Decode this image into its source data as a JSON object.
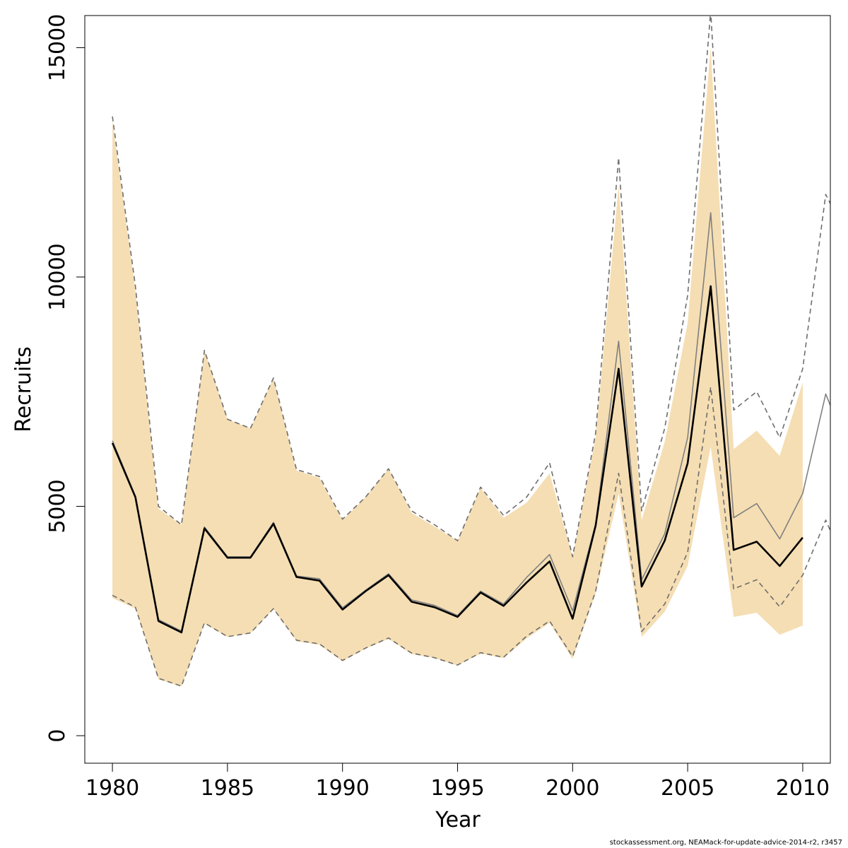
{
  "chart_data": {
    "type": "line",
    "xlabel": "Year",
    "ylabel": "Recruits",
    "xlim": [
      1978.8,
      2011.2
    ],
    "ylim": [
      -600,
      15700
    ],
    "x_ticks": [
      1980,
      1985,
      1990,
      1995,
      2000,
      2005,
      2010
    ],
    "y_ticks": [
      0,
      5000,
      10000,
      15000
    ],
    "grid": false,
    "band_color": "#f5deb3",
    "x": [
      1980,
      1981,
      1982,
      1983,
      1984,
      1985,
      1986,
      1987,
      1988,
      1989,
      1990,
      1991,
      1992,
      1993,
      1994,
      1995,
      1996,
      1997,
      1998,
      1999,
      2000,
      2001,
      2002,
      2003,
      2004,
      2005,
      2006,
      2007,
      2008,
      2009,
      2010
    ],
    "series": [
      {
        "style": "thick black line",
        "color": "#000000",
        "values": [
          6380,
          5200,
          2500,
          2250,
          4520,
          3880,
          3880,
          4620,
          3460,
          3380,
          2750,
          3150,
          3500,
          2920,
          2800,
          2590,
          3120,
          2830,
          3340,
          3800,
          2550,
          4580,
          8000,
          3250,
          4250,
          5940,
          9800,
          4050,
          4230,
          3700,
          4320
        ]
      },
      {
        "style": "thin grey line",
        "color": "#808080",
        "values": [
          6430,
          5220,
          2530,
          2280,
          4550,
          3900,
          3900,
          4650,
          3480,
          3420,
          2790,
          3170,
          3530,
          2960,
          2840,
          2620,
          3150,
          2870,
          3450,
          3950,
          2720,
          4620,
          8600,
          3400,
          4400,
          6500,
          11400,
          4750,
          5060,
          4290,
          5280,
          7450,
          7200
        ],
        "x": [
          1980,
          1981,
          1982,
          1983,
          1984,
          1985,
          1986,
          1987,
          1988,
          1989,
          1990,
          1991,
          1992,
          1993,
          1994,
          1995,
          1996,
          1997,
          1998,
          1999,
          2000,
          2001,
          2002,
          2003,
          2004,
          2005,
          2006,
          2007,
          2008,
          2009,
          2010,
          2011,
          2011.2
        ]
      },
      {
        "style": "grey dashed upper bound",
        "color": "#6e6e6e",
        "values": [
          13500,
          9800,
          5000,
          4600,
          8400,
          6900,
          6700,
          7800,
          5800,
          5650,
          4720,
          5200,
          5820,
          4900,
          4600,
          4250,
          5420,
          4800,
          5200,
          5950,
          3900,
          6600,
          12600,
          4900,
          6700,
          9600,
          15800,
          7100,
          7500,
          6500,
          8000,
          11800,
          11600
        ],
        "x": [
          1980,
          1981,
          1982,
          1983,
          1984,
          1985,
          1986,
          1987,
          1988,
          1989,
          1990,
          1991,
          1992,
          1993,
          1994,
          1995,
          1996,
          1997,
          1998,
          1999,
          2000,
          2001,
          2002,
          2003,
          2004,
          2005,
          2006,
          2007,
          2008,
          2009,
          2010,
          2011,
          2011.2
        ]
      },
      {
        "style": "grey dashed lower bound",
        "color": "#6e6e6e",
        "values": [
          3060,
          2800,
          1250,
          1080,
          2460,
          2160,
          2240,
          2770,
          2080,
          2000,
          1640,
          1910,
          2130,
          1800,
          1700,
          1540,
          1810,
          1710,
          2170,
          2500,
          1730,
          3150,
          5720,
          2270,
          2870,
          4000,
          7600,
          3200,
          3400,
          2810,
          3500,
          4700,
          4470
        ],
        "x": [
          1980,
          1981,
          1982,
          1983,
          1984,
          1985,
          1986,
          1987,
          1988,
          1989,
          1990,
          1991,
          1992,
          1993,
          1994,
          1995,
          1996,
          1997,
          1998,
          1999,
          2000,
          2001,
          2002,
          2003,
          2004,
          2005,
          2006,
          2007,
          2008,
          2009,
          2010,
          2011,
          2011.2
        ]
      }
    ],
    "band": {
      "x": [
        1980,
        1981,
        1982,
        1983,
        1984,
        1985,
        1986,
        1987,
        1988,
        1989,
        1990,
        1991,
        1992,
        1993,
        1994,
        1995,
        1996,
        1997,
        1998,
        1999,
        2000,
        2001,
        2002,
        2003,
        2004,
        2005,
        2006,
        2007,
        2008,
        2009,
        2010
      ],
      "upper": [
        13400,
        9700,
        4950,
        4600,
        8400,
        6900,
        6700,
        7800,
        5780,
        5620,
        4700,
        5200,
        5820,
        4860,
        4560,
        4250,
        5400,
        4750,
        5080,
        5720,
        3900,
        6500,
        12000,
        4700,
        6400,
        9000,
        15000,
        6250,
        6650,
        6100,
        7700
      ],
      "lower": [
        3000,
        2770,
        1230,
        1070,
        2440,
        2150,
        2230,
        2760,
        2060,
        1980,
        1620,
        1900,
        2110,
        1780,
        1690,
        1530,
        1790,
        1690,
        2120,
        2460,
        1670,
        3100,
        5280,
        2150,
        2700,
        3700,
        6300,
        2590,
        2680,
        2200,
        2400
      ]
    }
  },
  "footer": {
    "text": "stockassessment.org, NEAMack-for-update-advice-2014-r2, r3457"
  }
}
